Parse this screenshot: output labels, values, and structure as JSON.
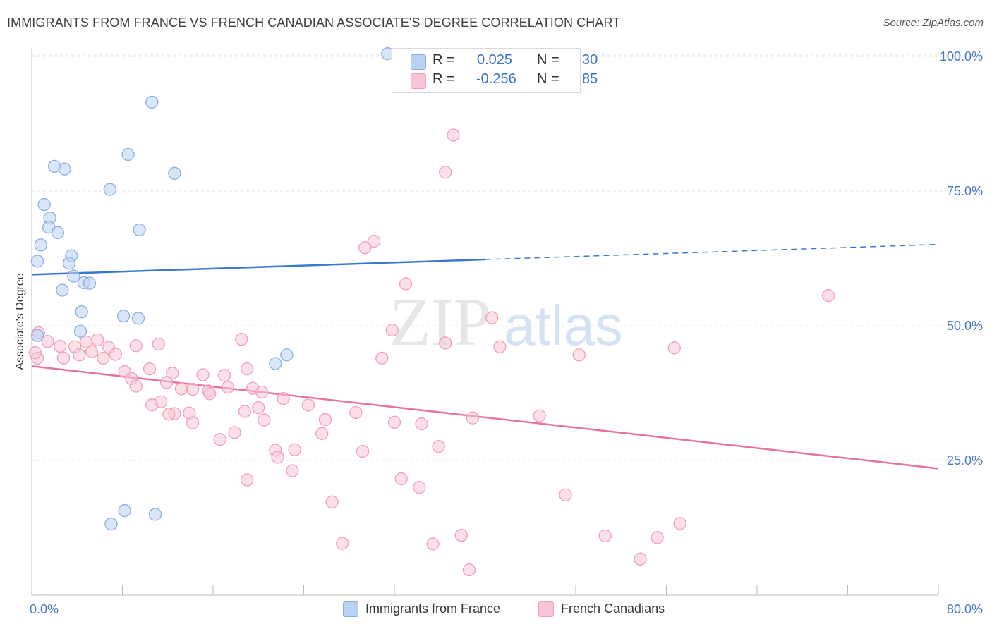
{
  "header": {
    "title": "IMMIGRANTS FROM FRANCE VS FRENCH CANADIAN ASSOCIATE'S DEGREE CORRELATION CHART",
    "source": "Source: ZipAtlas.com"
  },
  "watermark": {
    "zip": "ZIP",
    "atlas": "atlas"
  },
  "legend": {
    "r_label": "R =",
    "n_label": "N =",
    "series": [
      {
        "r": "0.025",
        "n": "30"
      },
      {
        "r": "-0.256",
        "n": "85"
      }
    ]
  },
  "colors": {
    "blue_fill": "#b9d1f3",
    "blue_stroke": "#8aaee3",
    "blue_line": "#3a78cf",
    "pink_fill": "#f9c4d3",
    "pink_stroke": "#ef9fb6",
    "pink_line": "#e8729a",
    "tick_text": "#4a78c4"
  },
  "chart_data": {
    "type": "scatter",
    "ylabel": "Associate's Degree",
    "xlim": [
      0,
      80
    ],
    "ylim": [
      0,
      100
    ],
    "x_tick_labels": [
      "0.0%",
      "80.0%"
    ],
    "y_ticks": [
      25,
      50,
      75,
      100
    ],
    "y_tick_labels": [
      "25.0%",
      "50.0%",
      "75.0%",
      "100.0%"
    ],
    "grid": true,
    "legend_position": "top-center",
    "series": [
      {
        "name": "Immigrants from France",
        "r": 0.025,
        "n": 30,
        "trend": {
          "x0": 0,
          "y0": 59.5,
          "x1": 40,
          "y1": 62.3,
          "x_dashed_end": 80,
          "y_dashed_end": 65.1
        },
        "points": [
          [
            31.4,
            100.5
          ],
          [
            10.6,
            91.5
          ],
          [
            8.5,
            81.8
          ],
          [
            2.0,
            79.6
          ],
          [
            2.9,
            79.1
          ],
          [
            12.6,
            78.3
          ],
          [
            6.9,
            75.3
          ],
          [
            1.1,
            72.5
          ],
          [
            1.6,
            70.0
          ],
          [
            1.5,
            68.3
          ],
          [
            2.3,
            67.3
          ],
          [
            9.5,
            67.8
          ],
          [
            0.8,
            65.0
          ],
          [
            0.5,
            62.0
          ],
          [
            3.5,
            63.0
          ],
          [
            3.3,
            61.6
          ],
          [
            3.7,
            59.2
          ],
          [
            4.6,
            58.0
          ],
          [
            5.1,
            57.9
          ],
          [
            2.7,
            56.6
          ],
          [
            4.4,
            52.6
          ],
          [
            8.1,
            51.8
          ],
          [
            9.4,
            51.4
          ],
          [
            4.3,
            49.0
          ],
          [
            0.5,
            48.2
          ],
          [
            22.5,
            44.6
          ],
          [
            21.5,
            43.0
          ],
          [
            8.2,
            15.7
          ],
          [
            10.9,
            15.0
          ],
          [
            7.0,
            13.2
          ]
        ]
      },
      {
        "name": "French Canadians",
        "r": -0.256,
        "n": 85,
        "trend": {
          "x0": 0,
          "y0": 42.5,
          "x1": 80,
          "y1": 23.5
        },
        "points": [
          [
            37.2,
            85.4
          ],
          [
            36.5,
            78.5
          ],
          [
            30.2,
            65.7
          ],
          [
            29.4,
            64.5
          ],
          [
            33.0,
            57.8
          ],
          [
            70.3,
            55.6
          ],
          [
            40.6,
            51.5
          ],
          [
            31.8,
            49.2
          ],
          [
            0.6,
            48.7
          ],
          [
            1.4,
            47.1
          ],
          [
            18.5,
            47.5
          ],
          [
            36.5,
            46.8
          ],
          [
            4.8,
            47.0
          ],
          [
            5.8,
            47.4
          ],
          [
            41.3,
            46.1
          ],
          [
            56.7,
            45.9
          ],
          [
            2.5,
            46.2
          ],
          [
            3.8,
            46.1
          ],
          [
            9.2,
            46.3
          ],
          [
            6.8,
            46.0
          ],
          [
            11.2,
            46.6
          ],
          [
            4.2,
            44.6
          ],
          [
            2.8,
            44.0
          ],
          [
            6.3,
            44.0
          ],
          [
            7.4,
            44.7
          ],
          [
            30.9,
            44.0
          ],
          [
            48.3,
            44.6
          ],
          [
            0.5,
            44.0
          ],
          [
            19.0,
            42.0
          ],
          [
            8.2,
            41.5
          ],
          [
            10.4,
            42.0
          ],
          [
            15.1,
            40.9
          ],
          [
            12.4,
            41.2
          ],
          [
            17.0,
            40.8
          ],
          [
            11.9,
            39.5
          ],
          [
            8.8,
            40.2
          ],
          [
            9.2,
            38.8
          ],
          [
            14.2,
            38.2
          ],
          [
            15.6,
            37.9
          ],
          [
            17.3,
            38.6
          ],
          [
            19.5,
            38.4
          ],
          [
            15.7,
            37.4
          ],
          [
            20.3,
            37.7
          ],
          [
            22.2,
            36.5
          ],
          [
            10.6,
            35.3
          ],
          [
            11.4,
            35.9
          ],
          [
            24.4,
            35.3
          ],
          [
            20.0,
            34.8
          ],
          [
            18.8,
            34.1
          ],
          [
            12.6,
            33.7
          ],
          [
            13.9,
            33.8
          ],
          [
            12.1,
            33.6
          ],
          [
            28.6,
            33.9
          ],
          [
            20.5,
            32.5
          ],
          [
            25.9,
            32.6
          ],
          [
            44.8,
            33.3
          ],
          [
            38.9,
            32.9
          ],
          [
            32.0,
            32.1
          ],
          [
            14.2,
            32.0
          ],
          [
            34.4,
            31.8
          ],
          [
            17.9,
            30.2
          ],
          [
            25.6,
            30.0
          ],
          [
            16.6,
            28.9
          ],
          [
            35.9,
            27.6
          ],
          [
            23.2,
            27.0
          ],
          [
            21.5,
            26.9
          ],
          [
            29.2,
            26.7
          ],
          [
            21.7,
            25.6
          ],
          [
            23.0,
            23.1
          ],
          [
            19.0,
            21.4
          ],
          [
            32.6,
            21.6
          ],
          [
            34.2,
            20.0
          ],
          [
            47.1,
            18.6
          ],
          [
            26.5,
            17.3
          ],
          [
            57.2,
            13.3
          ],
          [
            37.9,
            11.1
          ],
          [
            50.6,
            11.0
          ],
          [
            55.2,
            10.7
          ],
          [
            27.4,
            9.6
          ],
          [
            35.4,
            9.5
          ],
          [
            38.6,
            4.7
          ],
          [
            53.7,
            6.7
          ],
          [
            0.3,
            45.0
          ],
          [
            13.2,
            38.3
          ],
          [
            5.3,
            45.2
          ]
        ]
      }
    ]
  },
  "bottom_legend": [
    {
      "label": "Immigrants from France"
    },
    {
      "label": "French Canadians"
    }
  ]
}
